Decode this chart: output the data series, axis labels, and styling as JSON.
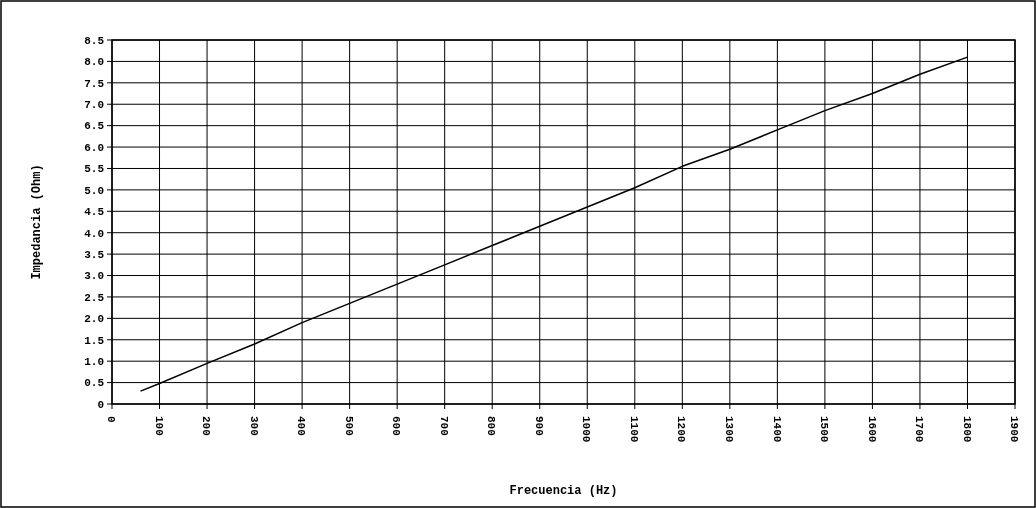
{
  "chart_data": {
    "type": "line",
    "xlabel": "Frecuencia (Hz)",
    "ylabel": "Impedancia (Ohm)",
    "x": [
      60,
      100,
      200,
      300,
      400,
      500,
      600,
      700,
      800,
      900,
      1000,
      1100,
      1200,
      1300,
      1400,
      1500,
      1600,
      1700,
      1800
    ],
    "series": [
      {
        "color": "#000000",
        "values": [
          0.3,
          0.48,
          0.95,
          1.4,
          1.9,
          2.35,
          2.8,
          3.25,
          3.7,
          4.15,
          4.6,
          5.05,
          5.55,
          5.95,
          6.4,
          6.85,
          7.25,
          7.7,
          8.1
        ]
      }
    ],
    "xlim": [
      0,
      1900
    ],
    "xticks": [
      0,
      100,
      200,
      300,
      400,
      500,
      600,
      700,
      800,
      900,
      1000,
      1100,
      1200,
      1300,
      1400,
      1500,
      1600,
      1700,
      1800,
      1900
    ],
    "ylim": [
      0,
      8.5
    ],
    "yticks": [
      0,
      0.5,
      {
        "value": 1,
        "label": "1.0"
      },
      1.5,
      {
        "value": 2,
        "label": "2.0"
      },
      2.5,
      {
        "value": 3,
        "label": "3.0"
      },
      3.5,
      {
        "value": 4,
        "label": "4.0"
      },
      4.5,
      {
        "value": 5,
        "label": "5.0"
      },
      5.5,
      {
        "value": 6,
        "label": "6.0"
      },
      6.5,
      {
        "value": 7,
        "label": "7.0"
      },
      7.5,
      {
        "value": 8,
        "label": "8.0"
      },
      8.5
    ],
    "grid": true,
    "marker": "none",
    "line_style": "solid"
  }
}
